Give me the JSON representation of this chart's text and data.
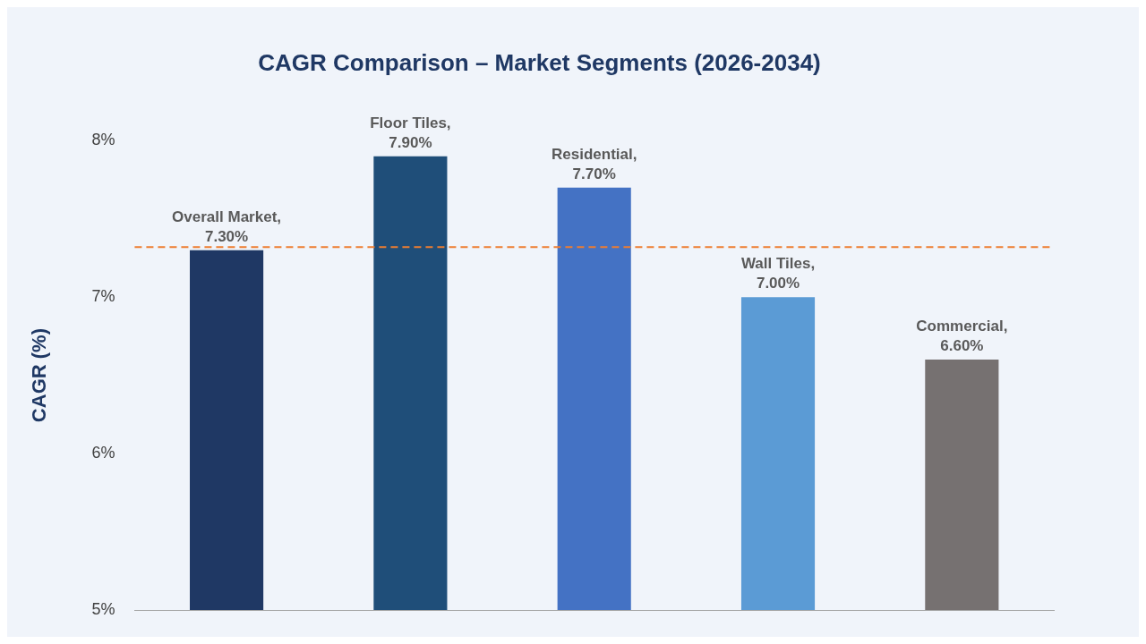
{
  "chart_data": {
    "type": "bar",
    "title": "CAGR Comparison – Market Segments (2026-2034)",
    "ylabel": "CAGR (%)",
    "categories": [
      null,
      null,
      null,
      null,
      null
    ],
    "values": [
      7.3,
      7.9,
      7.7,
      7.0,
      6.6
    ],
    "colors": [
      "#1f3864",
      "#1f4e79",
      "#4472c4",
      "#5b9bd5",
      "#767171"
    ],
    "value_labels": [
      "Overall Market, 7.30%",
      "Floor Tiles, 7.90%",
      "Residential, 7.70%",
      "Wall Tiles, 7.00%",
      "Commercial, 6.60%"
    ],
    "ylim": [
      5,
      8
    ],
    "yticks": [
      {
        "value": 5,
        "label": "5%"
      },
      {
        "value": 6,
        "label": "6%"
      },
      {
        "value": 7,
        "label": "7%"
      },
      {
        "value": 8,
        "label": "8%"
      }
    ],
    "ref_lines": [
      {
        "axis": "y",
        "value": 7.32,
        "color": "#ed7d31",
        "line_style": "dashed"
      }
    ],
    "tick_labels": "y",
    "grid": false,
    "legend": false
  }
}
